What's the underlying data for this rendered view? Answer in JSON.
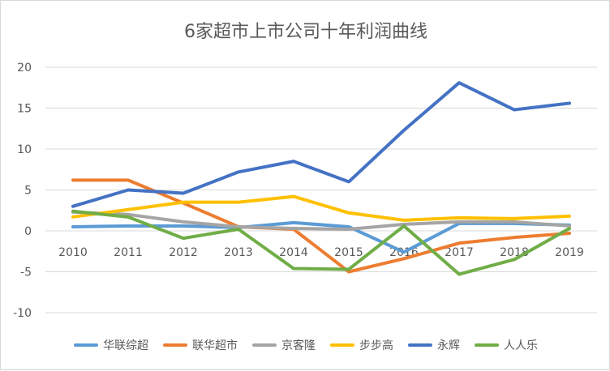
{
  "chart_data": {
    "type": "line",
    "title": "6家超市上市公司十年利润曲线",
    "xlabel": "",
    "ylabel": "",
    "categories": [
      "2010",
      "2011",
      "2012",
      "2013",
      "2014",
      "2015",
      "2016",
      "2017",
      "2018",
      "2019"
    ],
    "ylim": [
      -10,
      20
    ],
    "yticks": [
      -10,
      -5,
      0,
      5,
      10,
      15,
      20
    ],
    "grid": true,
    "legend_position": "bottom",
    "series": [
      {
        "name": "华联综超",
        "color": "#5b9bd5",
        "values": [
          0.5,
          0.6,
          0.6,
          0.4,
          1.0,
          0.5,
          -2.6,
          0.9,
          0.9,
          0.7
        ]
      },
      {
        "name": "联华超市",
        "color": "#ed7d31",
        "values": [
          6.2,
          6.2,
          3.4,
          0.5,
          0.2,
          -5.0,
          -3.4,
          -1.5,
          -0.8,
          -0.3
        ]
      },
      {
        "name": "京客隆",
        "color": "#a5a5a5",
        "values": [
          2.3,
          2.0,
          1.1,
          0.5,
          0.3,
          0.2,
          0.8,
          1.1,
          1.1,
          0.6
        ]
      },
      {
        "name": "步步高",
        "color": "#ffc000",
        "values": [
          1.7,
          2.6,
          3.5,
          3.5,
          4.2,
          2.2,
          1.3,
          1.6,
          1.5,
          1.8
        ]
      },
      {
        "name": "永辉",
        "color": "#4472c4",
        "values": [
          3.0,
          5.0,
          4.6,
          7.2,
          8.5,
          6.0,
          12.3,
          18.1,
          14.8,
          15.6
        ]
      },
      {
        "name": "人人乐",
        "color": "#70ad47",
        "values": [
          2.4,
          1.7,
          -0.9,
          0.2,
          -4.6,
          -4.7,
          0.6,
          -5.3,
          -3.5,
          0.3
        ]
      }
    ]
  }
}
